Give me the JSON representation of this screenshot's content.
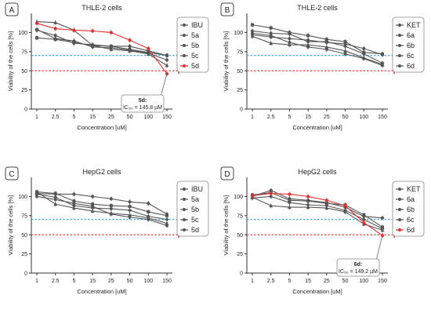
{
  "chart_data": [
    {
      "type": "line",
      "panel": "A",
      "title": "THLE-2 cells",
      "xlabel": "Concentration [uM]",
      "ylabel": "Viability of the cells [%]",
      "categories": [
        "1",
        "2.5",
        "5",
        "15",
        "25",
        "50",
        "100",
        "150"
      ],
      "ylim": [
        0,
        125
      ],
      "yticks": [
        "0",
        "25",
        "50",
        "75",
        "100"
      ],
      "reference_lines": [
        {
          "y": 70,
          "color": "#29a3e0"
        },
        {
          "y": 50,
          "color": "#e03030"
        }
      ],
      "legend": "top-right",
      "series": [
        {
          "name": "IBU",
          "color": "#555555",
          "values": [
            103,
            96,
            86,
            84,
            82,
            82,
            76,
            70
          ]
        },
        {
          "name": "5a",
          "color": "#555555",
          "values": [
            93,
            91,
            87,
            83,
            82,
            78,
            74,
            70
          ]
        },
        {
          "name": "5b",
          "color": "#555555",
          "values": [
            104,
            92,
            89,
            81,
            80,
            77,
            73,
            64
          ]
        },
        {
          "name": "5c",
          "color": "#555555",
          "values": [
            114,
            113,
            103,
            83,
            78,
            76,
            72,
            57
          ]
        },
        {
          "name": "5d",
          "color": "#e03030",
          "values": [
            112,
            105,
            103,
            102,
            100,
            90,
            79,
            46
          ]
        }
      ],
      "annotation": {
        "label": "5d:",
        "value": "IC₅₀ = 145.8 µM",
        "target_category": "150",
        "target_value": 46
      }
    },
    {
      "type": "line",
      "panel": "B",
      "title": "THLE-2 cells",
      "xlabel": "Concentration [uM]",
      "ylabel": "Viability of the cells [%]",
      "categories": [
        "1",
        "2.5",
        "5",
        "15",
        "25",
        "50",
        "100",
        "150"
      ],
      "ylim": [
        0,
        125
      ],
      "yticks": [
        "0",
        "25",
        "50",
        "75",
        "100"
      ],
      "reference_lines": [
        {
          "y": 70,
          "color": "#29a3e0"
        },
        {
          "y": 50,
          "color": "#e03030"
        }
      ],
      "legend": "top-right",
      "series": [
        {
          "name": "KET",
          "color": "#555555",
          "values": [
            97,
            94,
            92,
            90,
            87,
            85,
            79,
            71
          ]
        },
        {
          "name": "6a",
          "color": "#555555",
          "values": [
            110,
            106,
            100,
            96,
            91,
            88,
            74,
            72
          ]
        },
        {
          "name": "6b",
          "color": "#555555",
          "values": [
            102,
            99,
            98,
            88,
            88,
            82,
            72,
            60
          ]
        },
        {
          "name": "6c",
          "color": "#555555",
          "values": [
            95,
            86,
            84,
            84,
            81,
            76,
            67,
            58
          ]
        },
        {
          "name": "6d",
          "color": "#555555",
          "values": [
            99,
            96,
            87,
            81,
            78,
            72,
            66,
            57
          ]
        }
      ]
    },
    {
      "type": "line",
      "panel": "C",
      "title": "HepG2 cells",
      "xlabel": "Concentration [uM]",
      "ylabel": "Viability of the cells [%]",
      "categories": [
        "1",
        "2.5",
        "5",
        "15",
        "25",
        "50",
        "100",
        "150"
      ],
      "ylim": [
        0,
        125
      ],
      "yticks": [
        "0",
        "25",
        "50",
        "75",
        "100"
      ],
      "reference_lines": [
        {
          "y": 70,
          "color": "#29a3e0"
        },
        {
          "y": 50,
          "color": "#e03030"
        }
      ],
      "legend": "top-right",
      "series": [
        {
          "name": "IBU",
          "color": "#555555",
          "values": [
            104,
            103,
            103,
            100,
            97,
            93,
            91,
            77
          ]
        },
        {
          "name": "5a",
          "color": "#555555",
          "values": [
            106,
            104,
            94,
            90,
            88,
            87,
            80,
            75
          ]
        },
        {
          "name": "5b",
          "color": "#555555",
          "values": [
            103,
            99,
            88,
            85,
            84,
            82,
            74,
            70
          ]
        },
        {
          "name": "5c",
          "color": "#555555",
          "values": [
            106,
            90,
            85,
            81,
            78,
            76,
            72,
            65
          ]
        },
        {
          "name": "5d",
          "color": "#555555",
          "values": [
            100,
            96,
            91,
            87,
            77,
            73,
            70,
            62
          ]
        }
      ]
    },
    {
      "type": "line",
      "panel": "D",
      "title": "HepG2 cells",
      "xlabel": "Concentration [uM]",
      "ylabel": "Viability of the cells [%]",
      "categories": [
        "1",
        "2.5",
        "5",
        "15",
        "25",
        "50",
        "100",
        "150"
      ],
      "ylim": [
        0,
        125
      ],
      "yticks": [
        "0",
        "25",
        "50",
        "75",
        "100"
      ],
      "reference_lines": [
        {
          "y": 70,
          "color": "#29a3e0"
        },
        {
          "y": 50,
          "color": "#e03030"
        }
      ],
      "legend": "top-right",
      "series": [
        {
          "name": "KET",
          "color": "#555555",
          "values": [
            100,
            108,
            97,
            95,
            92,
            86,
            74,
            72
          ]
        },
        {
          "name": "6a",
          "color": "#555555",
          "values": [
            102,
            105,
            95,
            94,
            91,
            89,
            76,
            60
          ]
        },
        {
          "name": "6b",
          "color": "#555555",
          "values": [
            98,
            100,
            92,
            89,
            88,
            82,
            70,
            58
          ]
        },
        {
          "name": "6c",
          "color": "#555555",
          "values": [
            99,
            88,
            86,
            86,
            85,
            80,
            64,
            56
          ]
        },
        {
          "name": "6d",
          "color": "#e03030",
          "values": [
            101,
            104,
            103,
            100,
            95,
            88,
            66,
            49
          ]
        }
      ],
      "annotation": {
        "label": "6d:",
        "value": "IC₅₀ = 149.2 µM",
        "target_category": "150",
        "target_value": 49
      }
    }
  ]
}
